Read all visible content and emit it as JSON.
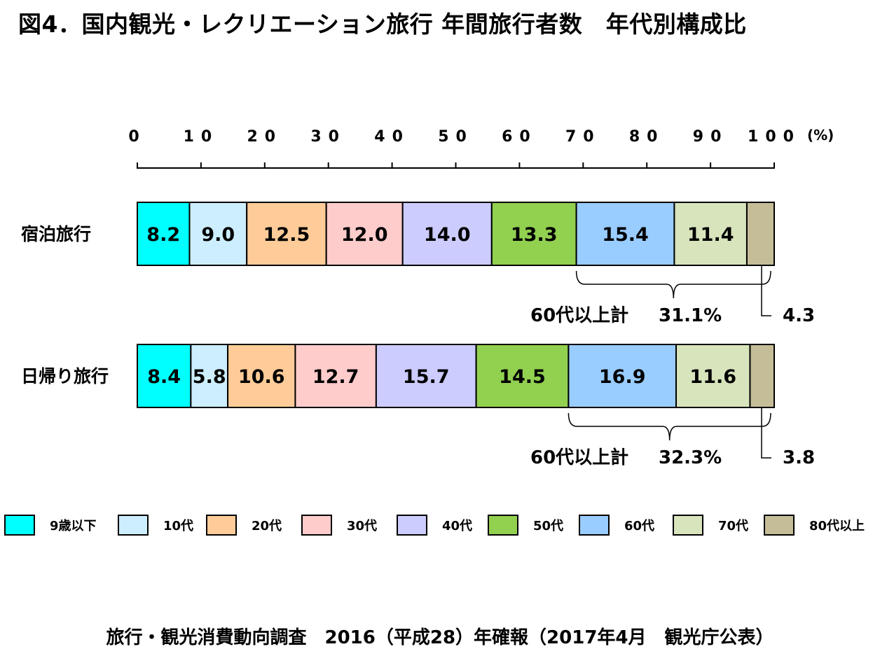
{
  "title": "図4．国内観光・レクリエーション旅行 年間旅行者数　年代別構成比",
  "source": "旅行・観光消費動向調査　2016（平成28）年確報（2017年4月　観光庁公表）",
  "chart_data": {
    "type": "bar",
    "orientation": "horizontal-stacked-100",
    "axis": {
      "ticks": [
        "0",
        "10",
        "20",
        "30",
        "40",
        "50",
        "60",
        "70",
        "80",
        "90",
        "100"
      ],
      "unit": "(%)",
      "range": [
        0,
        100
      ]
    },
    "categories": [
      "宿泊旅行",
      "日帰り旅行"
    ],
    "series": [
      {
        "name": "9歳以下",
        "color": "#00ffff",
        "values": [
          8.2,
          8.4
        ]
      },
      {
        "name": "10代",
        "color": "#cceeff",
        "values": [
          9.0,
          5.8
        ]
      },
      {
        "name": "20代",
        "color": "#ffcc99",
        "values": [
          12.5,
          10.6
        ]
      },
      {
        "name": "30代",
        "color": "#ffcccc",
        "values": [
          12.0,
          12.7
        ]
      },
      {
        "name": "40代",
        "color": "#ccccff",
        "values": [
          14.0,
          15.7
        ]
      },
      {
        "name": "50代",
        "color": "#92d050",
        "values": [
          13.3,
          14.5
        ]
      },
      {
        "name": "60代",
        "color": "#99ccff",
        "values": [
          15.4,
          16.9
        ]
      },
      {
        "name": "70代",
        "color": "#d8e4bc",
        "values": [
          11.4,
          11.6
        ]
      },
      {
        "name": "80代以上",
        "color": "#c4bd97",
        "values": [
          4.3,
          3.8
        ]
      }
    ],
    "annotations": [
      {
        "row": 0,
        "label": "60代以上計",
        "value": "31.1%",
        "last_value": "4.3"
      },
      {
        "row": 1,
        "label": "60代以上計",
        "value": "32.3%",
        "last_value": "3.8"
      }
    ]
  }
}
